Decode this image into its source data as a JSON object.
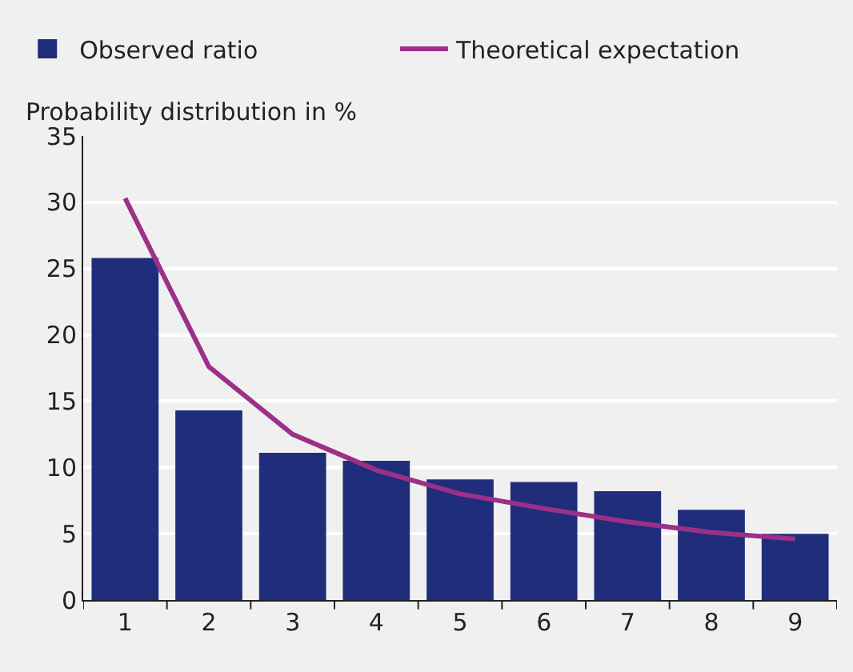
{
  "chart_data": {
    "type": "bar",
    "ylabel": "Probability distribution in %",
    "categories": [
      "1",
      "2",
      "3",
      "4",
      "5",
      "6",
      "7",
      "8",
      "9"
    ],
    "series": [
      {
        "name": "Observed ratio",
        "color": "#1f2d7b",
        "values": [
          25.8,
          14.3,
          11.1,
          10.5,
          9.1,
          8.9,
          8.2,
          6.8,
          5.0
        ]
      },
      {
        "name": "Theoretical expectation",
        "type": "line",
        "color": "#9b3089",
        "values": [
          30.3,
          17.6,
          12.5,
          9.8,
          8.0,
          6.9,
          5.9,
          5.1,
          4.6
        ]
      }
    ],
    "ylim": [
      0,
      35
    ],
    "yticks": [
      0,
      5,
      10,
      15,
      20,
      25,
      30,
      35
    ],
    "grid": "y",
    "legend": "top left",
    "marker": "none",
    "line_style": "solid"
  }
}
